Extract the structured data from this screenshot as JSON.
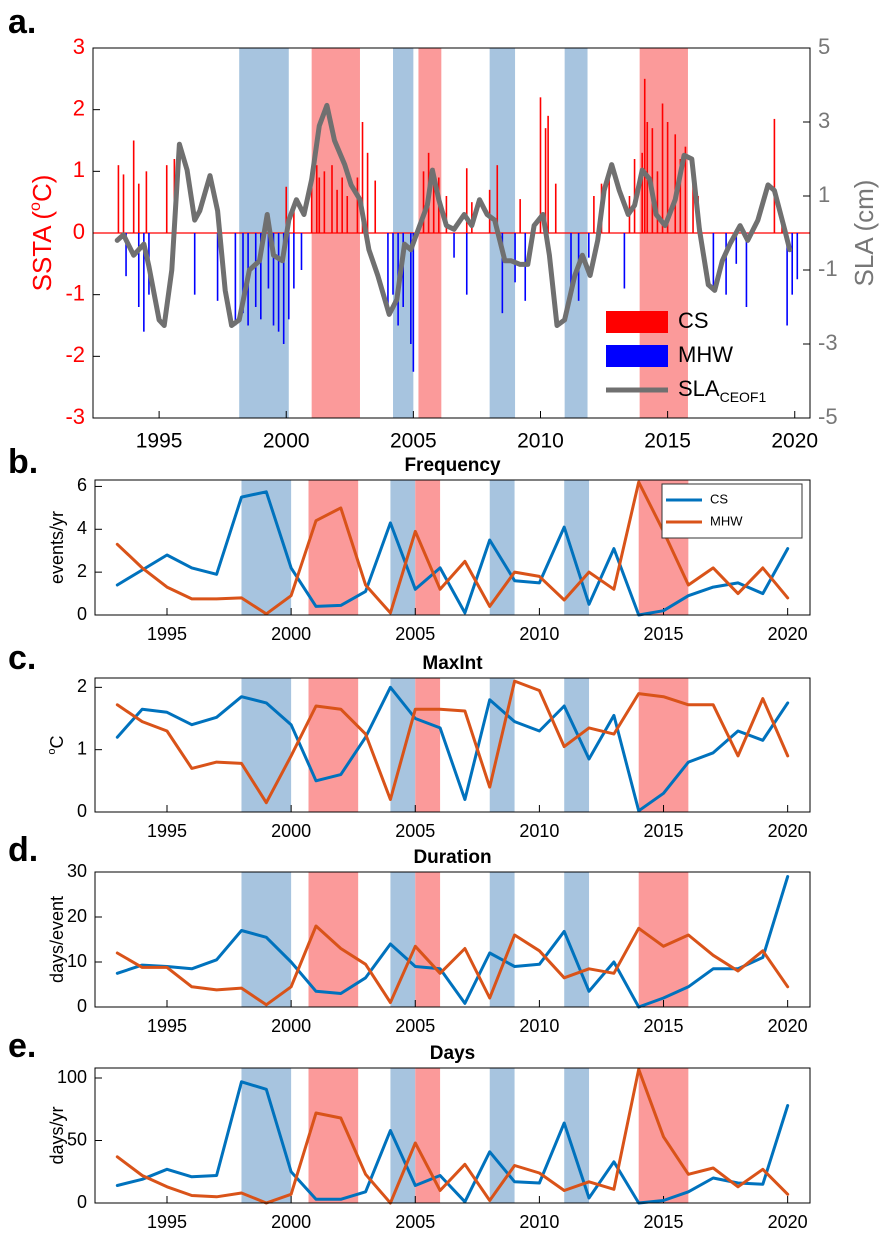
{
  "chart_data": [
    {
      "type": "combo",
      "panel_label": "a.",
      "ylabel": {
        "pre": "SSTA (",
        "sup": "o",
        "post": "C)"
      },
      "y2label": "SLA (cm)",
      "xlim": [
        1992.4,
        2020.6
      ],
      "xticks": [
        1995,
        2000,
        2005,
        2010,
        2015,
        2020
      ],
      "ylim": [
        -3,
        3
      ],
      "yticks": [
        -3,
        -2,
        -1,
        0,
        1,
        2,
        3
      ],
      "y2lim": [
        -5,
        5
      ],
      "y2ticks": [
        -5,
        -3,
        -1,
        1,
        3,
        5
      ],
      "legend": "lower right",
      "shading": [
        {
          "start": 1998.15,
          "end": 2000.1,
          "color": "#a7c4df"
        },
        {
          "start": 2001.0,
          "end": 2002.9,
          "color": "#fb9a9a"
        },
        {
          "start": 2004.2,
          "end": 2005.0,
          "color": "#a7c4df"
        },
        {
          "start": 2005.2,
          "end": 2006.1,
          "color": "#fb9a9a"
        },
        {
          "start": 2008.0,
          "end": 2009.0,
          "color": "#a7c4df"
        },
        {
          "start": 2010.95,
          "end": 2011.85,
          "color": "#a7c4df"
        },
        {
          "start": 2013.9,
          "end": 2015.8,
          "color": "#fb9a9a"
        }
      ],
      "series": [
        {
          "name": "CS",
          "type": "bar",
          "color": "#ff0000",
          "x": [
            1993.4,
            1993.6,
            1994.0,
            1994.2,
            1994.5,
            1995.3,
            1995.6,
            2000.0,
            2000.3,
            2001.0,
            2001.2,
            2001.3,
            2001.5,
            2001.8,
            2002.0,
            2002.2,
            2002.4,
            2002.8,
            2003.0,
            2003.2,
            2003.5,
            2005.4,
            2005.6,
            2005.8,
            2006.0,
            2006.3,
            2007.1,
            2007.3,
            2008.0,
            2008.3,
            2009.2,
            2010.0,
            2010.2,
            2010.3,
            2010.6,
            2012.1,
            2012.4,
            2012.7,
            2013.5,
            2013.7,
            2014.0,
            2014.1,
            2014.2,
            2014.4,
            2014.6,
            2014.8,
            2015.0,
            2015.3,
            2015.5,
            2015.7,
            2016.0,
            2016.2,
            2019.2,
            2019.5
          ],
          "values": [
            1.1,
            0.95,
            1.5,
            0.8,
            1.0,
            1.1,
            1.2,
            0.75,
            0.45,
            0.8,
            1.1,
            0.9,
            1.0,
            1.1,
            0.7,
            0.9,
            0.6,
            0.9,
            1.8,
            1.3,
            0.85,
            1.0,
            1.3,
            1.05,
            0.9,
            0.6,
            1.05,
            0.5,
            0.7,
            1.1,
            0.55,
            2.2,
            1.7,
            1.9,
            0.8,
            0.6,
            0.8,
            1.0,
            0.6,
            1.2,
            1.3,
            2.5,
            1.8,
            1.7,
            1.0,
            2.1,
            1.8,
            1.6,
            1.2,
            1.4,
            0.8,
            0.6,
            1.85,
            0.3
          ]
        },
        {
          "name": "MHW",
          "type": "bar",
          "color": "#0000ff",
          "x": [
            1993.7,
            1994.2,
            1994.4,
            1994.6,
            1996.4,
            1997.3,
            1998.0,
            1998.3,
            1998.5,
            1998.8,
            1999.0,
            1999.3,
            1999.5,
            1999.7,
            1999.9,
            2000.1,
            2000.3,
            2000.6,
            2004.0,
            2004.2,
            2004.4,
            2004.6,
            2004.9,
            2005.0,
            2006.6,
            2007.1,
            2008.5,
            2009.0,
            2009.4,
            2011.2,
            2011.5,
            2011.9,
            2013.3,
            2016.8,
            2017.3,
            2017.7,
            2018.1,
            2019.7,
            2019.9,
            2020.1
          ],
          "values": [
            -0.7,
            -1.2,
            -1.6,
            -1.0,
            -1.0,
            -1.1,
            -1.5,
            -1.3,
            -1.5,
            -1.2,
            -1.4,
            -0.9,
            -1.5,
            -1.6,
            -1.8,
            -1.4,
            -0.9,
            -0.6,
            -1.3,
            -1.0,
            -1.5,
            -1.2,
            -1.8,
            -2.25,
            -0.4,
            -1.0,
            -1.3,
            -0.8,
            -1.1,
            -0.9,
            -1.1,
            -0.4,
            -0.9,
            -0.9,
            -1.0,
            -0.5,
            -1.2,
            -1.5,
            -1.0,
            -0.75
          ]
        },
        {
          "name": {
            "base": "SLA",
            "sub": "CEOF1"
          },
          "type": "line",
          "axis": "y2",
          "color": "#707070",
          "x": [
            1993.35,
            1993.6,
            1994.0,
            1994.4,
            1994.6,
            1995.0,
            1995.2,
            1995.5,
            1995.8,
            1996.1,
            1996.4,
            1996.6,
            1997.0,
            1997.3,
            1997.6,
            1997.85,
            1998.15,
            1998.55,
            1998.95,
            1999.25,
            1999.5,
            1999.85,
            2000.1,
            2000.4,
            2000.7,
            2001.0,
            2001.3,
            2001.6,
            2001.9,
            2002.3,
            2002.55,
            2002.9,
            2003.25,
            2003.6,
            2004.05,
            2004.35,
            2004.65,
            2004.9,
            2005.25,
            2005.55,
            2005.75,
            2006.0,
            2006.3,
            2006.6,
            2007.0,
            2007.3,
            2007.6,
            2007.9,
            2008.2,
            2008.6,
            2008.85,
            2009.2,
            2009.5,
            2009.75,
            2010.1,
            2010.35,
            2010.65,
            2010.95,
            2011.35,
            2011.65,
            2011.95,
            2012.25,
            2012.5,
            2012.8,
            2013.1,
            2013.45,
            2013.7,
            2014.0,
            2014.3,
            2014.55,
            2014.9,
            2015.3,
            2015.65,
            2015.95,
            2016.25,
            2016.6,
            2016.85,
            2017.15,
            2017.45,
            2017.85,
            2018.15,
            2018.55,
            2018.95,
            2019.2,
            2019.6,
            2019.8
          ],
          "values": [
            -0.2,
            -0.05,
            -0.6,
            -0.3,
            -0.9,
            -2.35,
            -2.5,
            -1.0,
            2.4,
            1.7,
            0.35,
            0.6,
            1.55,
            0.6,
            -1.55,
            -2.5,
            -2.35,
            -1.0,
            -0.75,
            0.5,
            -0.6,
            -0.75,
            0.35,
            0.9,
            0.5,
            1.45,
            2.9,
            3.45,
            2.5,
            1.85,
            1.3,
            0.9,
            -0.45,
            -1.15,
            -2.2,
            -1.8,
            -0.3,
            -0.45,
            0.2,
            0.75,
            1.7,
            0.9,
            0.2,
            0.1,
            0.5,
            0.2,
            0.9,
            0.5,
            0.35,
            -0.75,
            -0.75,
            -0.85,
            -0.85,
            0.2,
            0.5,
            -0.6,
            -2.5,
            -2.35,
            -1.15,
            -0.6,
            -1.15,
            -0.2,
            1.15,
            1.85,
            1.15,
            0.5,
            0.75,
            1.7,
            1.45,
            0.5,
            0.2,
            0.9,
            2.1,
            2.0,
            0.1,
            -1.4,
            -1.55,
            -0.75,
            -0.3,
            0.2,
            -0.2,
            0.35,
            1.3,
            1.15,
            0.1,
            -0.45
          ]
        }
      ]
    },
    {
      "type": "line",
      "panel_label": "b.",
      "title": "Frequency",
      "ylabel": "events/yr",
      "x": [
        1993,
        1994,
        1995,
        1996,
        1997,
        1998,
        1999,
        2000,
        2001,
        2002,
        2003,
        2004,
        2005,
        2006,
        2007,
        2008,
        2009,
        2010,
        2011,
        2012,
        2013,
        2014,
        2015,
        2016,
        2017,
        2018,
        2019,
        2020
      ],
      "xlim": [
        1992.1,
        2020.9
      ],
      "xticks": [
        1995,
        2000,
        2005,
        2010,
        2015,
        2020
      ],
      "ylim": [
        0,
        6.3
      ],
      "yticks": [
        0,
        2,
        4,
        6
      ],
      "legend": "upper right",
      "shading": [
        {
          "start": 1998,
          "end": 2000,
          "color": "#a7c4df"
        },
        {
          "start": 2000.7,
          "end": 2002.7,
          "color": "#fb9a9a"
        },
        {
          "start": 2004,
          "end": 2005,
          "color": "#a7c4df"
        },
        {
          "start": 2005,
          "end": 2006,
          "color": "#fb9a9a"
        },
        {
          "start": 2008,
          "end": 2009,
          "color": "#a7c4df"
        },
        {
          "start": 2011,
          "end": 2012,
          "color": "#a7c4df"
        },
        {
          "start": 2014,
          "end": 2016,
          "color": "#fb9a9a"
        }
      ],
      "series": [
        {
          "name": "CS",
          "color": "#0072bd",
          "values": [
            1.4,
            2.1,
            2.8,
            2.2,
            1.9,
            5.5,
            5.75,
            2.2,
            0.4,
            0.45,
            1.1,
            4.3,
            1.2,
            2.2,
            0.1,
            3.5,
            1.6,
            1.5,
            4.1,
            0.5,
            3.1,
            0,
            0.2,
            0.9,
            1.3,
            1.5,
            1.0,
            3.1
          ]
        },
        {
          "name": "MHW",
          "color": "#d95319",
          "values": [
            3.3,
            2.2,
            1.3,
            0.75,
            0.75,
            0.8,
            0.05,
            0.9,
            4.4,
            5.0,
            1.4,
            0.1,
            3.9,
            1.2,
            2.5,
            0.4,
            2.0,
            1.8,
            0.7,
            2.0,
            1.2,
            6.2,
            3.9,
            1.4,
            2.2,
            1.0,
            2.2,
            0.8
          ]
        }
      ]
    },
    {
      "type": "line",
      "panel_label": "c.",
      "title": "MaxInt",
      "ylabel": {
        "sup": "o",
        "post": "C"
      },
      "x": [
        1993,
        1994,
        1995,
        1996,
        1997,
        1998,
        1999,
        2000,
        2001,
        2002,
        2003,
        2004,
        2005,
        2006,
        2007,
        2008,
        2009,
        2010,
        2011,
        2012,
        2013,
        2014,
        2015,
        2016,
        2017,
        2018,
        2019,
        2020
      ],
      "xlim": [
        1992.1,
        2020.9
      ],
      "xticks": [
        1995,
        2000,
        2005,
        2010,
        2015,
        2020
      ],
      "ylim": [
        0,
        2.15
      ],
      "yticks": [
        0,
        1,
        2
      ],
      "shading": [
        {
          "start": 1998,
          "end": 2000,
          "color": "#a7c4df"
        },
        {
          "start": 2000.7,
          "end": 2002.7,
          "color": "#fb9a9a"
        },
        {
          "start": 2004,
          "end": 2005,
          "color": "#a7c4df"
        },
        {
          "start": 2005,
          "end": 2006,
          "color": "#fb9a9a"
        },
        {
          "start": 2008,
          "end": 2009,
          "color": "#a7c4df"
        },
        {
          "start": 2011,
          "end": 2012,
          "color": "#a7c4df"
        },
        {
          "start": 2014,
          "end": 2016,
          "color": "#fb9a9a"
        }
      ],
      "series": [
        {
          "name": "CS",
          "color": "#0072bd",
          "values": [
            1.2,
            1.65,
            1.6,
            1.4,
            1.52,
            1.85,
            1.75,
            1.4,
            0.5,
            0.6,
            1.2,
            2.0,
            1.5,
            1.35,
            0.2,
            1.8,
            1.45,
            1.3,
            1.7,
            0.85,
            1.55,
            0.02,
            0.3,
            0.8,
            0.95,
            1.3,
            1.15,
            1.75
          ]
        },
        {
          "name": "MHW",
          "color": "#d95319",
          "values": [
            1.72,
            1.45,
            1.3,
            0.7,
            0.8,
            0.78,
            0.15,
            0.9,
            1.7,
            1.65,
            1.25,
            0.2,
            1.65,
            1.65,
            1.62,
            0.4,
            2.1,
            1.95,
            1.05,
            1.35,
            1.25,
            1.9,
            1.85,
            1.72,
            1.72,
            0.9,
            1.82,
            0.9
          ]
        }
      ]
    },
    {
      "type": "line",
      "panel_label": "d.",
      "title": "Duration",
      "ylabel": "days/event",
      "x": [
        1993,
        1994,
        1995,
        1996,
        1997,
        1998,
        1999,
        2000,
        2001,
        2002,
        2003,
        2004,
        2005,
        2006,
        2007,
        2008,
        2009,
        2010,
        2011,
        2012,
        2013,
        2014,
        2015,
        2016,
        2017,
        2018,
        2019,
        2020
      ],
      "xlim": [
        1992.1,
        2020.9
      ],
      "xticks": [
        1995,
        2000,
        2005,
        2010,
        2015,
        2020
      ],
      "ylim": [
        0,
        30
      ],
      "yticks": [
        0,
        10,
        20,
        30
      ],
      "shading": [
        {
          "start": 1998,
          "end": 2000,
          "color": "#a7c4df"
        },
        {
          "start": 2000.7,
          "end": 2002.7,
          "color": "#fb9a9a"
        },
        {
          "start": 2004,
          "end": 2005,
          "color": "#a7c4df"
        },
        {
          "start": 2005,
          "end": 2006,
          "color": "#fb9a9a"
        },
        {
          "start": 2008,
          "end": 2009,
          "color": "#a7c4df"
        },
        {
          "start": 2011,
          "end": 2012,
          "color": "#a7c4df"
        },
        {
          "start": 2014,
          "end": 2016,
          "color": "#fb9a9a"
        }
      ],
      "series": [
        {
          "name": "CS",
          "color": "#0072bd",
          "values": [
            7.5,
            9.3,
            9,
            8.5,
            10.5,
            17,
            15.5,
            10,
            3.5,
            3,
            6.5,
            14,
            9,
            8.5,
            0.8,
            12,
            9,
            9.5,
            16.8,
            3.5,
            10,
            0,
            2,
            4.5,
            8.5,
            8.5,
            11,
            29
          ]
        },
        {
          "name": "MHW",
          "color": "#d95319",
          "values": [
            12,
            8.8,
            8.8,
            4.5,
            3.8,
            4.2,
            0.5,
            4.5,
            18,
            13,
            9.5,
            1,
            13.5,
            7.5,
            13,
            2,
            16,
            12.5,
            6.5,
            8.5,
            7.5,
            17.5,
            13.5,
            16,
            11.5,
            8,
            12.5,
            4.5
          ]
        }
      ]
    },
    {
      "type": "line",
      "panel_label": "e.",
      "title": "Days",
      "ylabel": "days/yr",
      "x": [
        1993,
        1994,
        1995,
        1996,
        1997,
        1998,
        1999,
        2000,
        2001,
        2002,
        2003,
        2004,
        2005,
        2006,
        2007,
        2008,
        2009,
        2010,
        2011,
        2012,
        2013,
        2014,
        2015,
        2016,
        2017,
        2018,
        2019,
        2020
      ],
      "xlim": [
        1992.1,
        2020.9
      ],
      "xticks": [
        1995,
        2000,
        2005,
        2010,
        2015,
        2020
      ],
      "ylim": [
        0,
        108
      ],
      "yticks": [
        0,
        50,
        100
      ],
      "shading": [
        {
          "start": 1998,
          "end": 2000,
          "color": "#a7c4df"
        },
        {
          "start": 2000.7,
          "end": 2002.7,
          "color": "#fb9a9a"
        },
        {
          "start": 2004,
          "end": 2005,
          "color": "#a7c4df"
        },
        {
          "start": 2005,
          "end": 2006,
          "color": "#fb9a9a"
        },
        {
          "start": 2008,
          "end": 2009,
          "color": "#a7c4df"
        },
        {
          "start": 2011,
          "end": 2012,
          "color": "#a7c4df"
        },
        {
          "start": 2014,
          "end": 2016,
          "color": "#fb9a9a"
        }
      ],
      "series": [
        {
          "name": "CS",
          "color": "#0072bd",
          "values": [
            14,
            19,
            27,
            21,
            22,
            97,
            91,
            25,
            3,
            3,
            9,
            58,
            14,
            22,
            1,
            41,
            17,
            16,
            64,
            4,
            33,
            0,
            2,
            9,
            20,
            16,
            15,
            78
          ]
        },
        {
          "name": "MHW",
          "color": "#d95319",
          "values": [
            37,
            22,
            13,
            6,
            5,
            8,
            0,
            7,
            72,
            68,
            23,
            0,
            48,
            10,
            31,
            2,
            30,
            24,
            10,
            17,
            11,
            107,
            53,
            23,
            28,
            13,
            27,
            7
          ]
        }
      ]
    }
  ]
}
